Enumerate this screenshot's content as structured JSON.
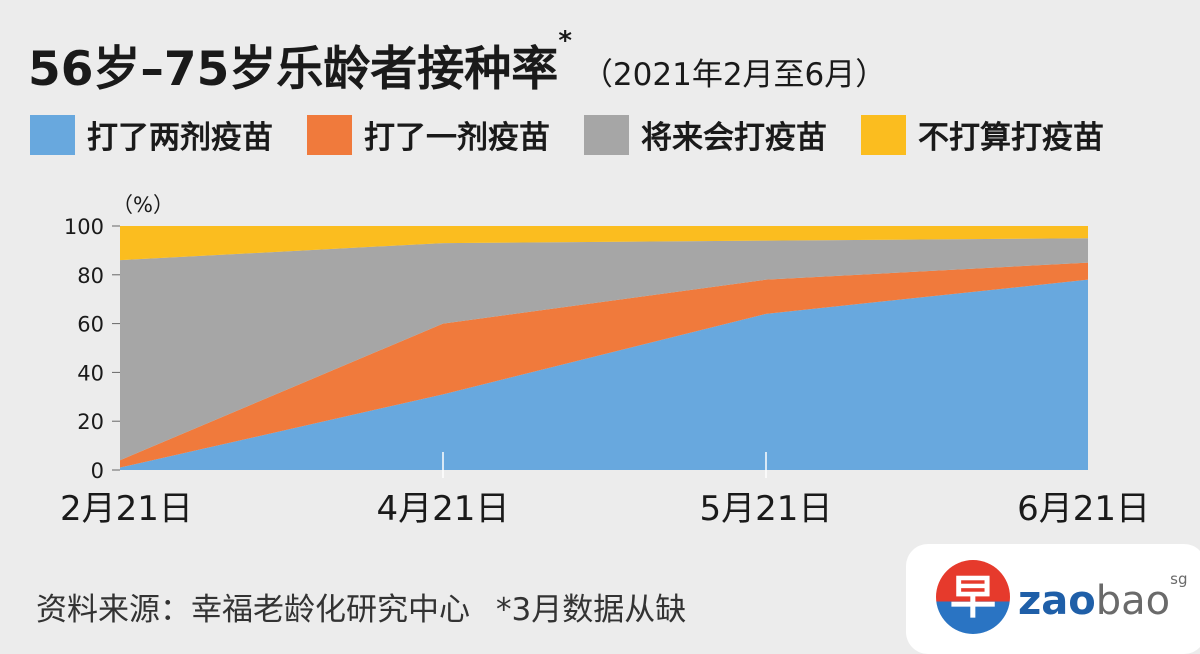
{
  "header": {
    "title": "56岁–75岁乐龄者接种率",
    "title_mark": "*",
    "subtitle": "（2021年2月至6月）"
  },
  "legend": [
    {
      "label": "打了两剂疫苗",
      "color": "#68a8de"
    },
    {
      "label": "打了一剂疫苗",
      "color": "#f07a3c"
    },
    {
      "label": "将来会打疫苗",
      "color": "#a6a6a6"
    },
    {
      "label": "不打算打疫苗",
      "color": "#fbbd1f"
    }
  ],
  "chart_data": {
    "type": "area",
    "stacked": true,
    "x": [
      "2月21日",
      "4月21日",
      "5月21日",
      "6月21日"
    ],
    "ylabel": "（%）",
    "ylim": [
      0,
      100
    ],
    "yticks": [
      0,
      20,
      40,
      60,
      80,
      100
    ],
    "series": [
      {
        "name": "打了两剂疫苗",
        "values": [
          1,
          31,
          64,
          78
        ],
        "color": "#68a8de"
      },
      {
        "name": "打了一剂疫苗",
        "values": [
          3,
          29,
          14,
          7
        ],
        "color": "#f07a3c"
      },
      {
        "name": "将来会打疫苗",
        "values": [
          82,
          33,
          16,
          10
        ],
        "color": "#a6a6a6"
      },
      {
        "name": "不打算打疫苗",
        "values": [
          14,
          7,
          6,
          5
        ],
        "color": "#fbbd1f"
      }
    ]
  },
  "footer": {
    "source": "资料来源：幸福老龄化研究中心",
    "note": "*3月数据从缺"
  },
  "logo": {
    "glyph": "早",
    "word_bold": "zao",
    "word_light": "bao",
    "sup": "sg"
  }
}
